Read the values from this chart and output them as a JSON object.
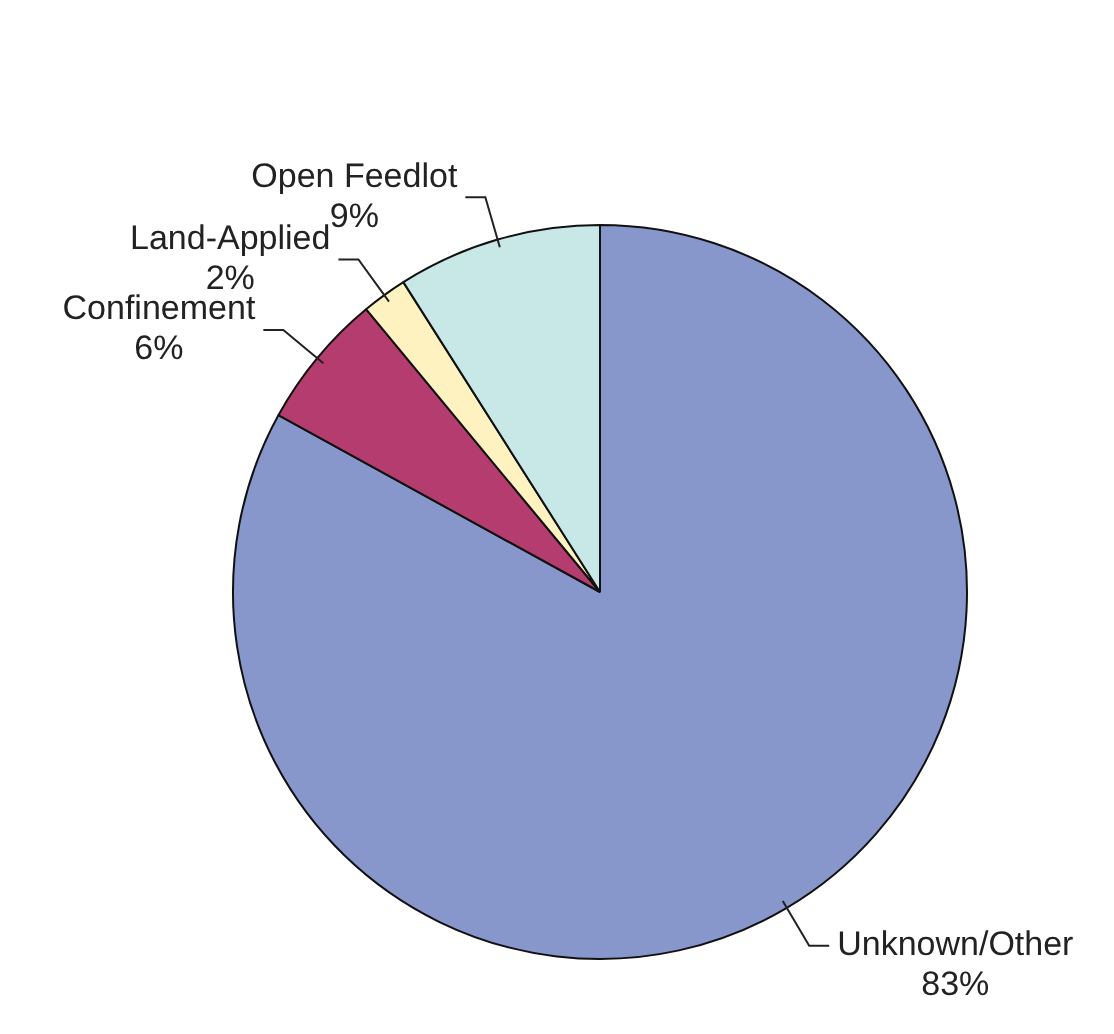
{
  "chart_data": {
    "type": "pie",
    "categories": [
      "Unknown/Other",
      "Confinement",
      "Land-Applied",
      "Open Feedlot"
    ],
    "values": [
      83,
      6,
      2,
      9
    ],
    "value_labels": [
      "83%",
      "6%",
      "2%",
      "9%"
    ],
    "colors": [
      "#8797cc",
      "#b43c6e",
      "#fdf2c0",
      "#c8e8e8"
    ]
  }
}
